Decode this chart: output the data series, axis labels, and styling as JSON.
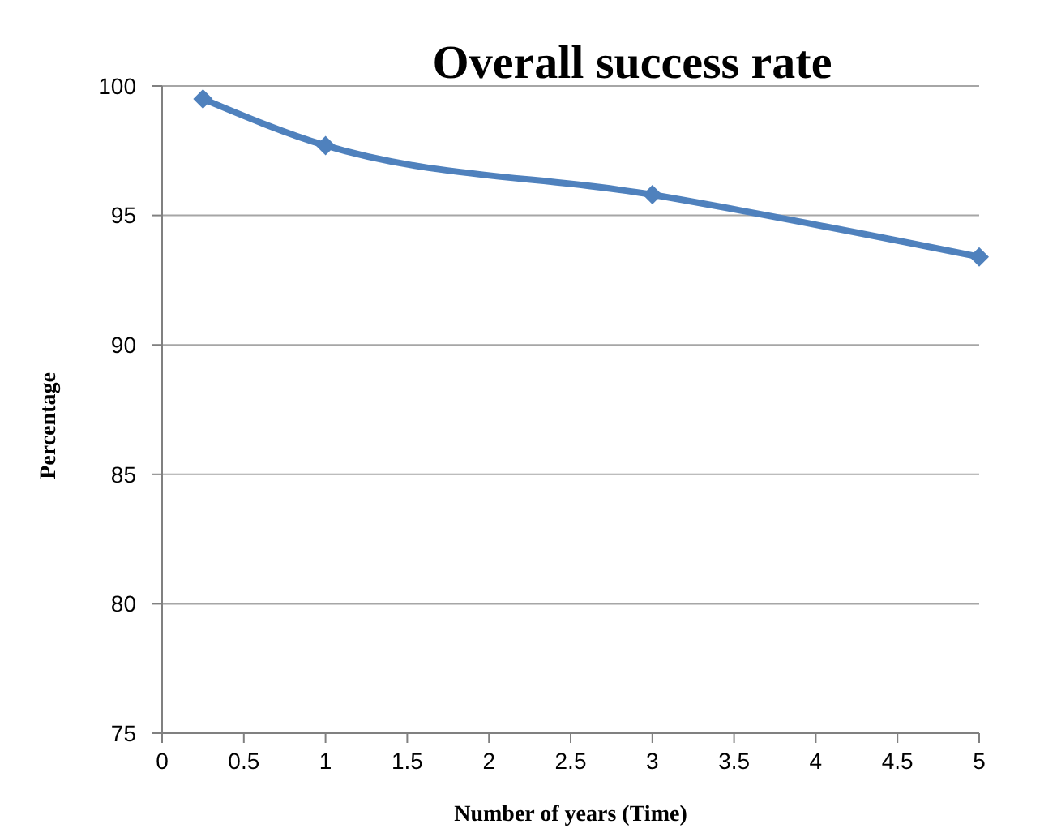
{
  "chart_data": {
    "type": "line",
    "title": "Overall success rate",
    "xlabel": "Number of years (Time)",
    "ylabel": "Percentage",
    "x": [
      0.25,
      1,
      3,
      5
    ],
    "series": [
      {
        "color": "#4f81bd",
        "values": [
          99.5,
          97.7,
          95.8,
          93.4
        ]
      }
    ],
    "xlim": [
      0,
      5
    ],
    "xticks": [
      0,
      0.5,
      1,
      1.5,
      2,
      2.5,
      3,
      3.5,
      4,
      4.5,
      5
    ],
    "ylim": [
      75,
      100
    ],
    "yticks": [
      75,
      80,
      85,
      90,
      95,
      100
    ],
    "grid": "y",
    "marker": "diamond",
    "line_style": "solid"
  }
}
